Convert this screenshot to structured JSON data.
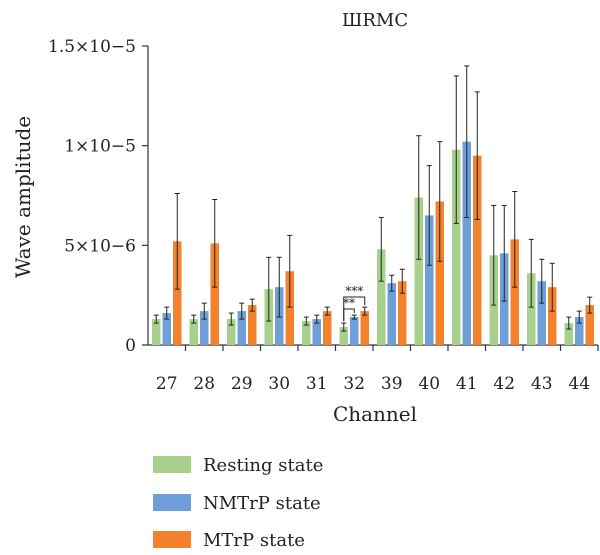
{
  "chart_data": {
    "type": "bar",
    "title": "ШRMC",
    "xlabel": "Channel",
    "ylabel": "Wave amplitude",
    "categories": [
      "27",
      "28",
      "29",
      "30",
      "31",
      "32",
      "39",
      "40",
      "41",
      "42",
      "43",
      "44"
    ],
    "ylim": [
      0,
      1.5e-05
    ],
    "yticks": [
      {
        "value": 0,
        "label": "0"
      },
      {
        "value": 5e-06,
        "label": "5×10−6"
      },
      {
        "value": 1e-05,
        "label": "1×10−5"
      },
      {
        "value": 1.5e-05,
        "label": "1.5×10−5"
      }
    ],
    "series": [
      {
        "name": "Resting state",
        "color": "#a8d08d",
        "values": [
          1.3e-06,
          1.3e-06,
          1.3e-06,
          2.8e-06,
          1.2e-06,
          9e-07,
          4.8e-06,
          7.4e-06,
          9.8e-06,
          4.5e-06,
          3.6e-06,
          1.1e-06
        ],
        "errors": [
          2e-07,
          2e-07,
          3e-07,
          1.6e-06,
          2e-07,
          2e-07,
          1.6e-06,
          3.1e-06,
          3.7e-06,
          2.5e-06,
          1.7e-06,
          3e-07
        ]
      },
      {
        "name": "NMTrP state",
        "color": "#6f9fd8",
        "values": [
          1.6e-06,
          1.7e-06,
          1.7e-06,
          2.9e-06,
          1.3e-06,
          1.4e-06,
          3.1e-06,
          6.5e-06,
          1.02e-05,
          4.6e-06,
          3.2e-06,
          1.4e-06
        ],
        "errors": [
          3e-07,
          4e-07,
          4e-07,
          1.5e-06,
          2e-07,
          1e-07,
          4e-07,
          2.5e-06,
          3.8e-06,
          2.4e-06,
          1.1e-06,
          3e-07
        ]
      },
      {
        "name": "MTrP state",
        "color": "#f4812c",
        "values": [
          5.2e-06,
          5.1e-06,
          2e-06,
          3.7e-06,
          1.7e-06,
          1.7e-06,
          3.2e-06,
          7.2e-06,
          9.5e-06,
          5.3e-06,
          2.9e-06,
          2e-06
        ],
        "errors": [
          2.4e-06,
          2.2e-06,
          3e-07,
          1.8e-06,
          2e-07,
          2e-07,
          6e-07,
          3e-06,
          3.2e-06,
          2.4e-06,
          1.2e-06,
          4e-07
        ]
      }
    ],
    "annotations": [
      {
        "category": "32",
        "from_series": 0,
        "to_series": 2,
        "text": "***"
      },
      {
        "category": "32",
        "from_series": 0,
        "to_series": 1,
        "text": "**"
      }
    ],
    "legend": {
      "placement": "bottom-left"
    },
    "grid": false
  }
}
